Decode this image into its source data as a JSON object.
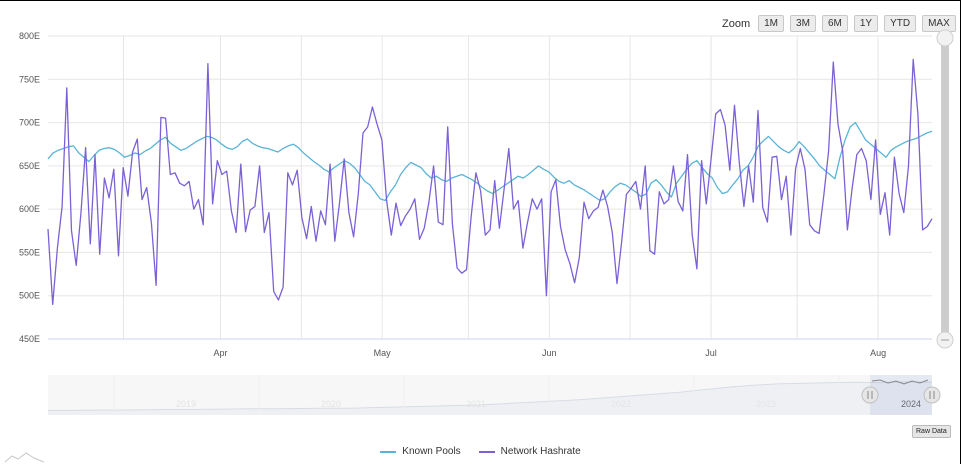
{
  "zoom": {
    "label": "Zoom",
    "buttons": [
      "1M",
      "3M",
      "6M",
      "1Y",
      "YTD",
      "MAX"
    ]
  },
  "raw_data_label": "Raw Data",
  "colors": {
    "known_pools": "#5ab4d6",
    "network_hashrate": "#7b61d6",
    "grid": "#e6e6e6",
    "scrollbar": "#cccccc"
  },
  "chart_data": {
    "type": "line",
    "y_ticks": [
      "450E",
      "500E",
      "550E",
      "600E",
      "650E",
      "700E",
      "750E",
      "800E"
    ],
    "ylim": [
      450,
      800
    ],
    "x_tick_labels": [
      "Apr",
      "May",
      "Jun",
      "Jul",
      "Aug"
    ],
    "x_tick_days": [
      32,
      62,
      93,
      123,
      154
    ],
    "x_range_days": [
      0,
      164
    ],
    "grid": true,
    "legend_position": "bottom-center",
    "series": [
      {
        "name": "Known Pools",
        "values": [
          658,
          665,
          668,
          670,
          672,
          673,
          665,
          660,
          655,
          662,
          668,
          670,
          671,
          669,
          665,
          660,
          662,
          665,
          663,
          667,
          670,
          675,
          680,
          683,
          676,
          672,
          668,
          670,
          674,
          678,
          681,
          684,
          683,
          680,
          675,
          671,
          669,
          672,
          678,
          681,
          676,
          673,
          671,
          670,
          668,
          666,
          670,
          673,
          675,
          671,
          665,
          660,
          655,
          651,
          646,
          643,
          648,
          652,
          656,
          653,
          648,
          640,
          632,
          628,
          620,
          612,
          610,
          620,
          628,
          640,
          648,
          654,
          651,
          648,
          641,
          636,
          638,
          634,
          632,
          636,
          638,
          640,
          637,
          634,
          630,
          625,
          621,
          618,
          622,
          626,
          630,
          634,
          638,
          636,
          640,
          645,
          650,
          646,
          643,
          637,
          632,
          630,
          633,
          628,
          625,
          622,
          618,
          614,
          610,
          612,
          620,
          626,
          630,
          628,
          624,
          620,
          615,
          617,
          630,
          634,
          628,
          620,
          614,
          630,
          638,
          646,
          653,
          656,
          648,
          641,
          636,
          625,
          618,
          620,
          628,
          635,
          645,
          650,
          660,
          673,
          679,
          684,
          678,
          672,
          668,
          665,
          670,
          678,
          672,
          665,
          658,
          650,
          645,
          640,
          635,
          660,
          680,
          695,
          700,
          690,
          680,
          675,
          670,
          665,
          660,
          668,
          672,
          675,
          678,
          680,
          682,
          685,
          688,
          690
        ]
      },
      {
        "name": "Network Hashrate",
        "values": [
          577,
          490,
          555,
          603,
          740,
          575,
          535,
          595,
          671,
          560,
          663,
          548,
          636,
          613,
          646,
          546,
          648,
          615,
          666,
          681,
          611,
          625,
          584,
          512,
          706,
          705,
          640,
          642,
          630,
          627,
          632,
          600,
          611,
          582,
          768,
          606,
          656,
          640,
          644,
          598,
          573,
          652,
          574,
          599,
          603,
          650,
          573,
          596,
          505,
          495,
          510,
          642,
          628,
          645,
          590,
          566,
          603,
          563,
          598,
          582,
          652,
          563,
          607,
          658,
          596,
          568,
          618,
          688,
          695,
          718,
          698,
          680,
          610,
          570,
          607,
          581,
          592,
          600,
          612,
          565,
          578,
          608,
          650,
          585,
          582,
          695,
          583,
          532,
          526,
          530,
          592,
          642,
          621,
          570,
          576,
          633,
          578,
          623,
          670,
          600,
          610,
          555,
          585,
          612,
          600,
          612,
          500,
          620,
          634,
          580,
          553,
          537,
          515,
          544,
          608,
          589,
          598,
          602,
          622,
          603,
          573,
          514,
          563,
          617,
          624,
          632,
          600,
          650,
          552,
          548,
          620,
          606,
          611,
          650,
          609,
          598,
          663,
          570,
          531,
          656,
          606,
          657,
          710,
          715,
          697,
          645,
          720,
          655,
          603,
          650,
          608,
          714,
          602,
          585,
          660,
          661,
          611,
          638,
          570,
          647,
          670,
          646,
          582,
          575,
          572,
          617,
          667,
          770,
          698,
          667,
          576,
          624,
          663,
          670,
          656,
          611,
          680,
          594,
          619,
          570,
          660,
          618,
          596,
          650,
          773,
          710,
          576,
          580,
          589
        ]
      }
    ],
    "navigator": {
      "year_labels": [
        "2019",
        "2020",
        "2021",
        "2022",
        "2023",
        "2024"
      ],
      "overview_values": [
        0.05,
        0.05,
        0.06,
        0.06,
        0.07,
        0.08,
        0.08,
        0.09,
        0.1,
        0.1,
        0.11,
        0.12,
        0.12,
        0.14,
        0.16,
        0.18,
        0.2,
        0.22,
        0.26,
        0.3,
        0.34,
        0.38,
        0.44,
        0.5,
        0.56,
        0.62,
        0.7,
        0.78,
        0.84,
        0.88,
        0.9,
        0.92,
        0.93,
        0.92,
        0.94,
        0.93
      ]
    }
  }
}
